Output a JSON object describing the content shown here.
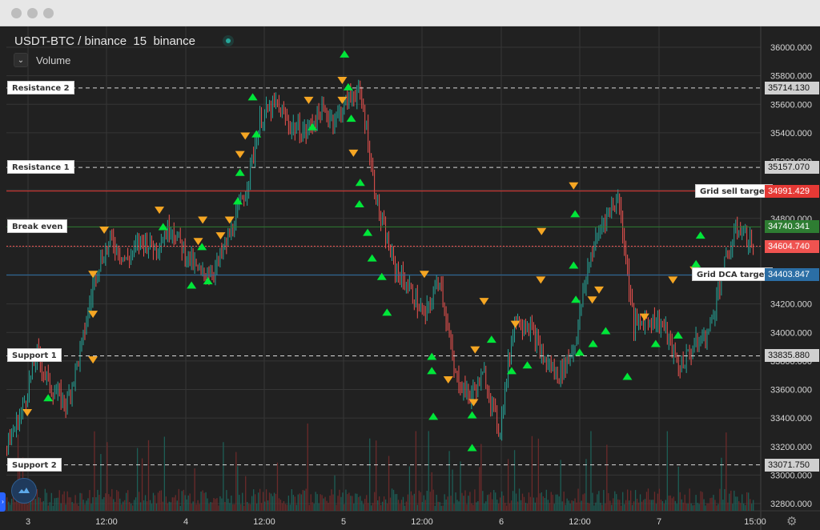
{
  "window": {
    "title_bar_dots": 3
  },
  "legend": {
    "symbol": "USDT-BTC",
    "exchange": "binance",
    "interval": "15",
    "source": "binance",
    "volume_label": "Volume"
  },
  "icons": {
    "collapse": "chevron-down-icon",
    "logo": "tradingview-cloud-icon",
    "settings": "gear-icon"
  },
  "colors": {
    "background": "#212121",
    "grid": "#363636",
    "up": "#26a69a",
    "down": "#ef5350",
    "buy_marker": "#00e639",
    "sell_marker": "#f5a623",
    "grid_sell": "#e53935",
    "break_even": "#2e7d32",
    "current": "#ef5350",
    "grid_dca": "#2b6ea5"
  },
  "levels": [
    {
      "name": "Resistance 2",
      "value": "35714.130",
      "style": "dashed",
      "color": "#d8d8d8"
    },
    {
      "name": "Resistance 1",
      "value": "35157.070",
      "style": "dashed",
      "color": "#d8d8d8"
    },
    {
      "name": "Break even",
      "value": "34740.341",
      "style": "solid",
      "color": "#2e7d32"
    },
    {
      "name": "Support 1",
      "value": "33835.880",
      "style": "dashed",
      "color": "#d8d8d8"
    },
    {
      "name": "Support 2",
      "value": "33071.750",
      "style": "dashed",
      "color": "#d8d8d8"
    }
  ],
  "targets": [
    {
      "name": "Grid sell target",
      "value": "34991.429",
      "color": "#e53935"
    },
    {
      "name": "Grid DCA target",
      "value": "34403.847",
      "color": "#2b6ea5"
    }
  ],
  "current_price": "34604.740",
  "chart_data": {
    "type": "candlestick",
    "y_axis": {
      "ticks": [
        "36000.000",
        "35800.000",
        "35600.000",
        "35400.000",
        "35200.000",
        "35000.000",
        "34800.000",
        "34600.000",
        "34400.000",
        "34200.000",
        "34000.000",
        "33800.000",
        "33600.000",
        "33400.000",
        "33200.000",
        "33000.000",
        "32800.000"
      ],
      "range": [
        32750,
        36100
      ]
    },
    "x_axis": {
      "ticks": [
        "3",
        "12:00",
        "4",
        "12:00",
        "5",
        "12:00",
        "6",
        "12:00",
        "7",
        "15:00"
      ]
    },
    "price_path": [
      [
        0,
        33200
      ],
      [
        0.02,
        33450
      ],
      [
        0.04,
        33850
      ],
      [
        0.06,
        33600
      ],
      [
        0.08,
        33500
      ],
      [
        0.1,
        33900
      ],
      [
        0.12,
        34450
      ],
      [
        0.14,
        34650
      ],
      [
        0.16,
        34500
      ],
      [
        0.18,
        34650
      ],
      [
        0.2,
        34600
      ],
      [
        0.22,
        34750
      ],
      [
        0.24,
        34550
      ],
      [
        0.26,
        34400
      ],
      [
        0.28,
        34450
      ],
      [
        0.3,
        34700
      ],
      [
        0.32,
        35000
      ],
      [
        0.34,
        35500
      ],
      [
        0.36,
        35600
      ],
      [
        0.38,
        35450
      ],
      [
        0.4,
        35400
      ],
      [
        0.42,
        35550
      ],
      [
        0.44,
        35500
      ],
      [
        0.46,
        35650
      ],
      [
        0.47,
        35700
      ],
      [
        0.48,
        35500
      ],
      [
        0.49,
        35100
      ],
      [
        0.5,
        34800
      ],
      [
        0.52,
        34450
      ],
      [
        0.54,
        34300
      ],
      [
        0.56,
        34100
      ],
      [
        0.58,
        34400
      ],
      [
        0.6,
        33700
      ],
      [
        0.62,
        33550
      ],
      [
        0.64,
        33700
      ],
      [
        0.66,
        33300
      ],
      [
        0.68,
        34100
      ],
      [
        0.7,
        34050
      ],
      [
        0.72,
        33800
      ],
      [
        0.74,
        33700
      ],
      [
        0.76,
        33900
      ],
      [
        0.78,
        34500
      ],
      [
        0.8,
        34800
      ],
      [
        0.82,
        34950
      ],
      [
        0.84,
        34050
      ],
      [
        0.86,
        34100
      ],
      [
        0.88,
        34050
      ],
      [
        0.9,
        33750
      ],
      [
        0.92,
        33900
      ],
      [
        0.94,
        34000
      ],
      [
        0.96,
        34450
      ],
      [
        0.98,
        34750
      ],
      [
        1.0,
        34600
      ]
    ],
    "markers": [
      {
        "type": "sell",
        "x": 0.028,
        "y": 33440
      },
      {
        "type": "buy",
        "x": 0.056,
        "y": 33540
      },
      {
        "type": "sell",
        "x": 0.116,
        "y": 33810
      },
      {
        "type": "sell",
        "x": 0.116,
        "y": 34130
      },
      {
        "type": "sell",
        "x": 0.116,
        "y": 34410
      },
      {
        "type": "sell",
        "x": 0.131,
        "y": 34720
      },
      {
        "type": "sell",
        "x": 0.205,
        "y": 34860
      },
      {
        "type": "buy",
        "x": 0.21,
        "y": 34740
      },
      {
        "type": "buy",
        "x": 0.248,
        "y": 34330
      },
      {
        "type": "sell",
        "x": 0.257,
        "y": 34640
      },
      {
        "type": "sell",
        "x": 0.263,
        "y": 34790
      },
      {
        "type": "buy",
        "x": 0.27,
        "y": 34360
      },
      {
        "type": "buy",
        "x": 0.262,
        "y": 34600
      },
      {
        "type": "sell",
        "x": 0.287,
        "y": 34680
      },
      {
        "type": "sell",
        "x": 0.299,
        "y": 34790
      },
      {
        "type": "buy",
        "x": 0.31,
        "y": 34920
      },
      {
        "type": "buy",
        "x": 0.313,
        "y": 35120
      },
      {
        "type": "sell",
        "x": 0.313,
        "y": 35250
      },
      {
        "type": "sell",
        "x": 0.32,
        "y": 35380
      },
      {
        "type": "buy",
        "x": 0.33,
        "y": 35650
      },
      {
        "type": "buy",
        "x": 0.335,
        "y": 35390
      },
      {
        "type": "sell",
        "x": 0.405,
        "y": 35630
      },
      {
        "type": "buy",
        "x": 0.41,
        "y": 35440
      },
      {
        "type": "sell",
        "x": 0.45,
        "y": 35770
      },
      {
        "type": "sell",
        "x": 0.45,
        "y": 35630
      },
      {
        "type": "buy",
        "x": 0.453,
        "y": 35950
      },
      {
        "type": "buy",
        "x": 0.458,
        "y": 35720
      },
      {
        "type": "buy",
        "x": 0.462,
        "y": 35500
      },
      {
        "type": "sell",
        "x": 0.465,
        "y": 35260
      },
      {
        "type": "buy",
        "x": 0.474,
        "y": 35050
      },
      {
        "type": "buy",
        "x": 0.473,
        "y": 34900
      },
      {
        "type": "buy",
        "x": 0.484,
        "y": 34700
      },
      {
        "type": "buy",
        "x": 0.49,
        "y": 34520
      },
      {
        "type": "buy",
        "x": 0.503,
        "y": 34390
      },
      {
        "type": "buy",
        "x": 0.51,
        "y": 34140
      },
      {
        "type": "sell",
        "x": 0.56,
        "y": 34410
      },
      {
        "type": "buy",
        "x": 0.57,
        "y": 33830
      },
      {
        "type": "buy",
        "x": 0.57,
        "y": 33730
      },
      {
        "type": "buy",
        "x": 0.572,
        "y": 33410
      },
      {
        "type": "sell",
        "x": 0.592,
        "y": 33670
      },
      {
        "type": "buy",
        "x": 0.624,
        "y": 33190
      },
      {
        "type": "buy",
        "x": 0.624,
        "y": 33420
      },
      {
        "type": "sell",
        "x": 0.626,
        "y": 33510
      },
      {
        "type": "sell",
        "x": 0.628,
        "y": 33880
      },
      {
        "type": "sell",
        "x": 0.64,
        "y": 34220
      },
      {
        "type": "buy",
        "x": 0.65,
        "y": 33950
      },
      {
        "type": "buy",
        "x": 0.677,
        "y": 33730
      },
      {
        "type": "sell",
        "x": 0.682,
        "y": 34060
      },
      {
        "type": "buy",
        "x": 0.698,
        "y": 33770
      },
      {
        "type": "sell",
        "x": 0.716,
        "y": 34370
      },
      {
        "type": "sell",
        "x": 0.717,
        "y": 34710
      },
      {
        "type": "sell",
        "x": 0.76,
        "y": 35030
      },
      {
        "type": "buy",
        "x": 0.762,
        "y": 34830
      },
      {
        "type": "buy",
        "x": 0.76,
        "y": 34470
      },
      {
        "type": "buy",
        "x": 0.763,
        "y": 34230
      },
      {
        "type": "buy",
        "x": 0.768,
        "y": 33860
      },
      {
        "type": "buy",
        "x": 0.786,
        "y": 33920
      },
      {
        "type": "sell",
        "x": 0.785,
        "y": 34230
      },
      {
        "type": "sell",
        "x": 0.794,
        "y": 34300
      },
      {
        "type": "buy",
        "x": 0.803,
        "y": 34010
      },
      {
        "type": "buy",
        "x": 0.832,
        "y": 33690
      },
      {
        "type": "sell",
        "x": 0.855,
        "y": 34110
      },
      {
        "type": "buy",
        "x": 0.87,
        "y": 33920
      },
      {
        "type": "sell",
        "x": 0.893,
        "y": 34370
      },
      {
        "type": "buy",
        "x": 0.9,
        "y": 33980
      },
      {
        "type": "sell",
        "x": 0.922,
        "y": 34440
      },
      {
        "type": "buy",
        "x": 0.924,
        "y": 34480
      },
      {
        "type": "buy",
        "x": 0.93,
        "y": 34680
      }
    ]
  }
}
